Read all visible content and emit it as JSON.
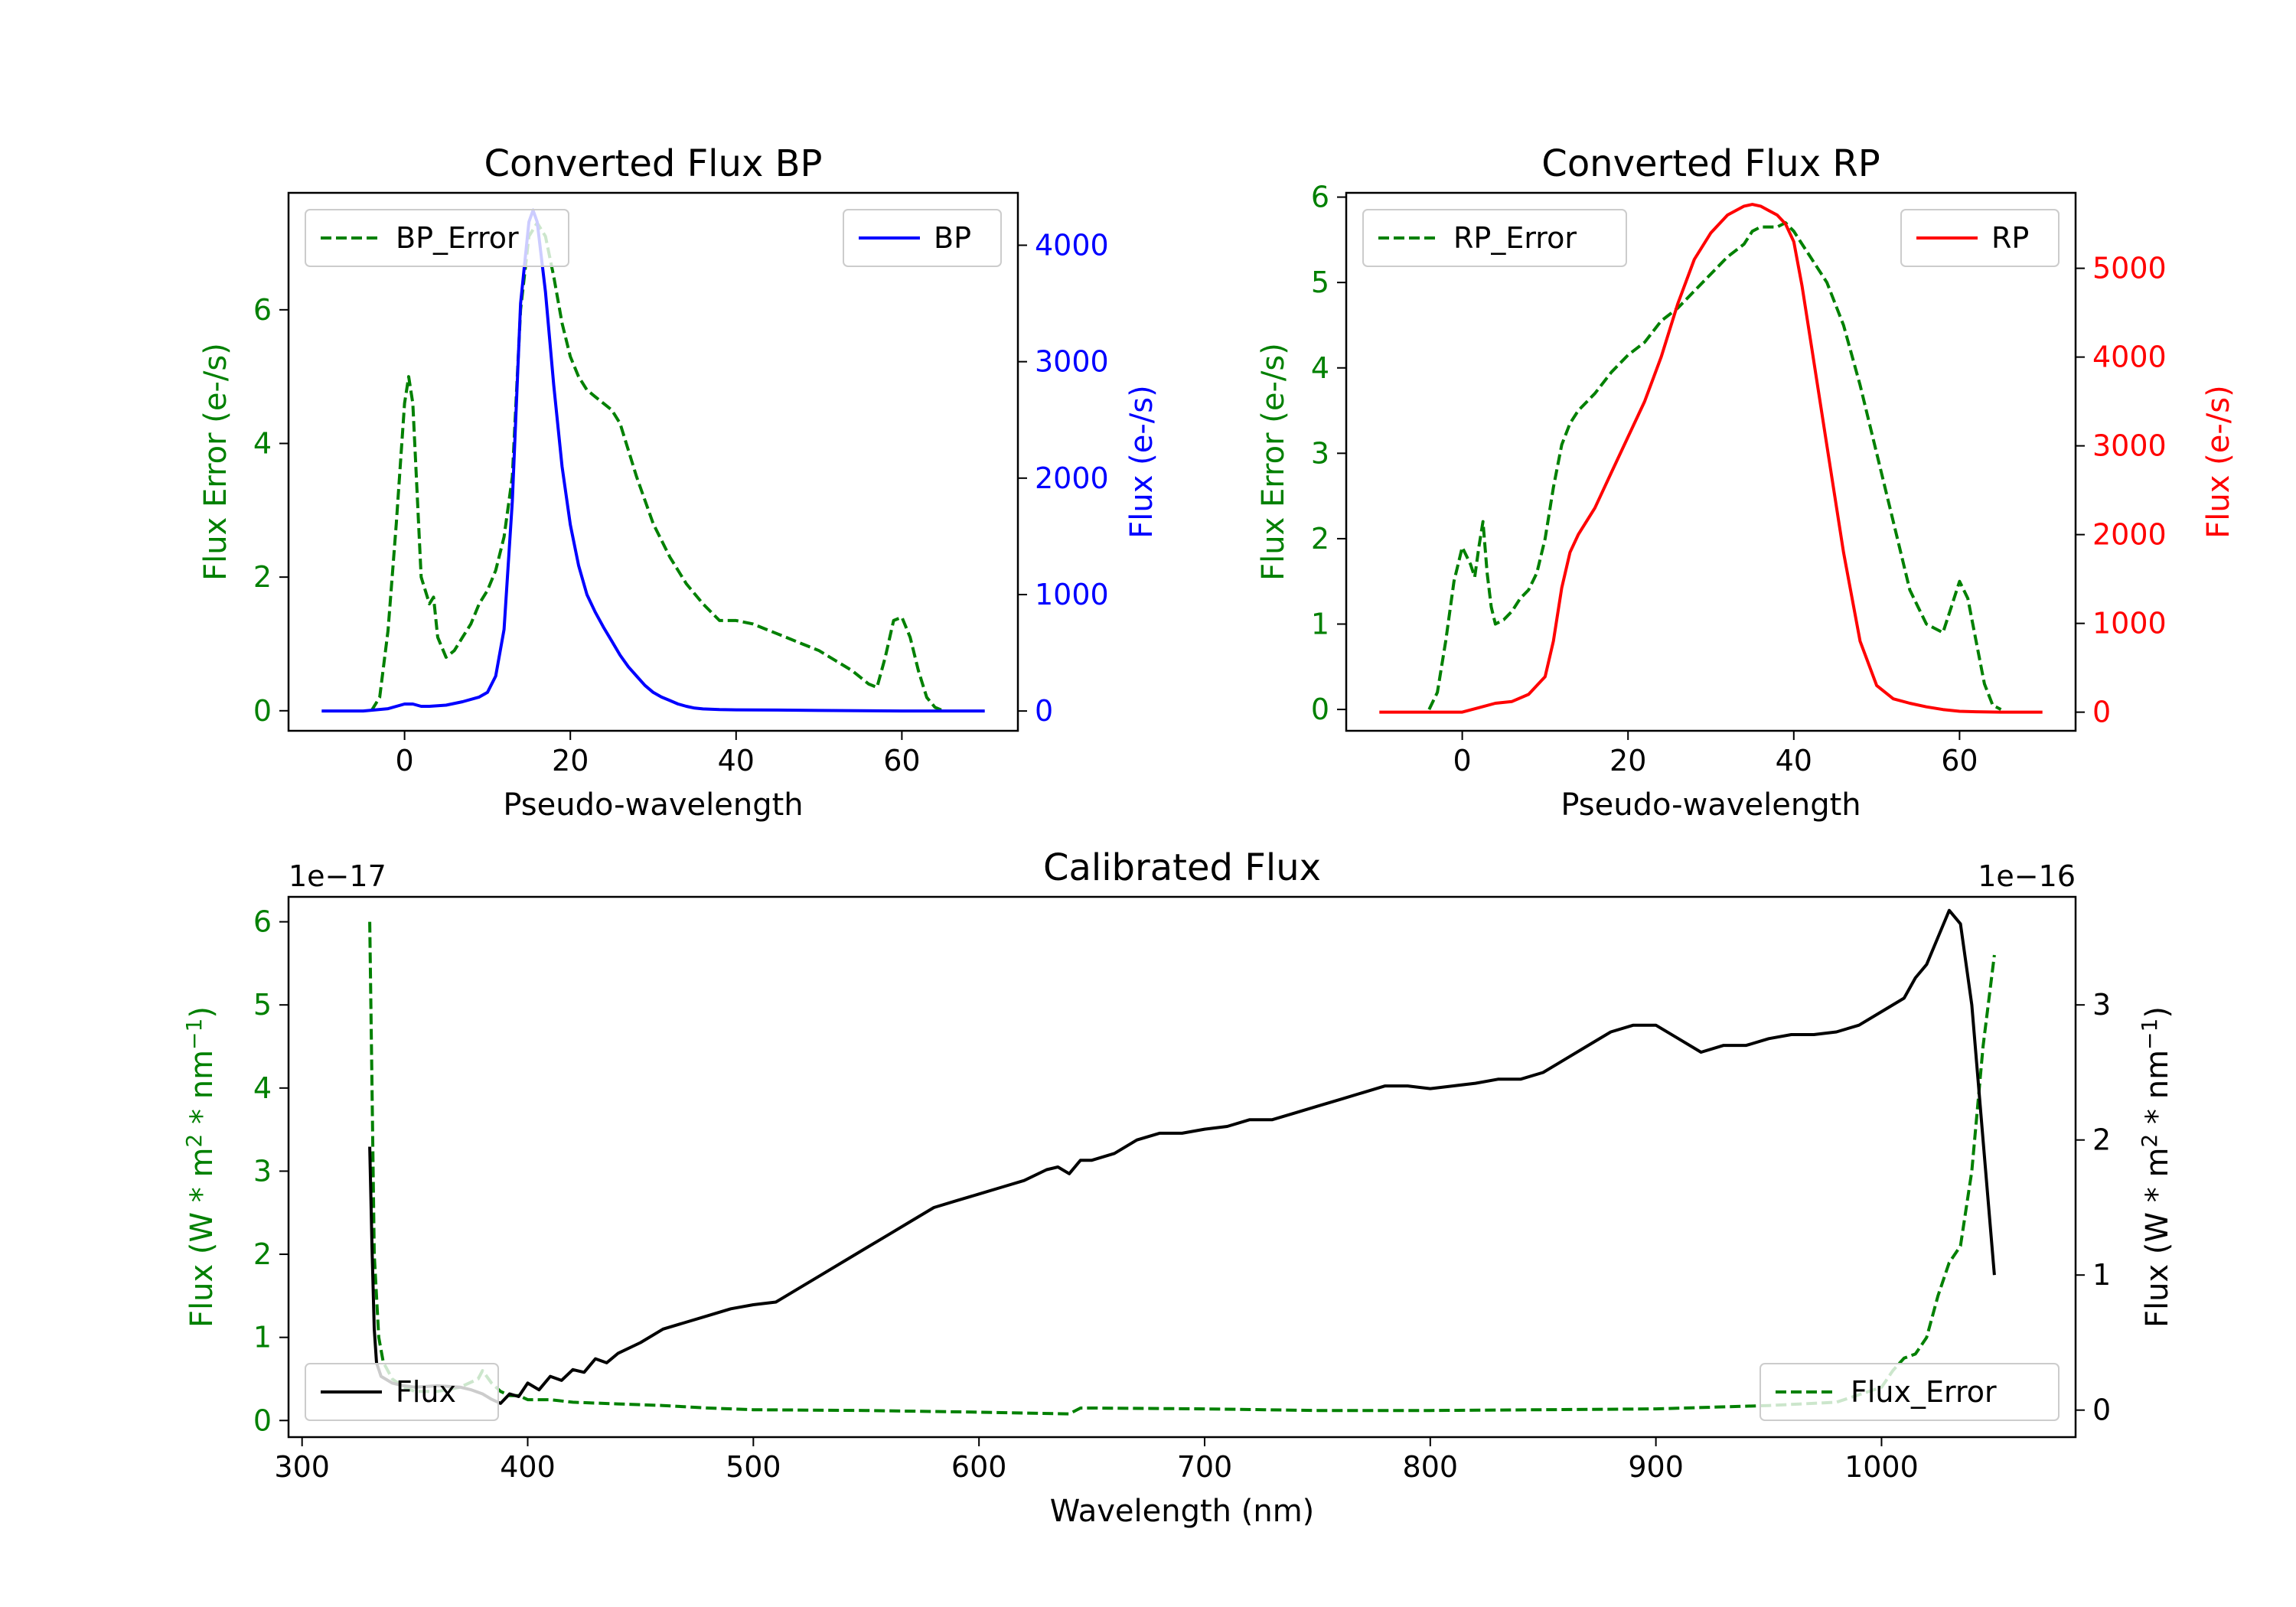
{
  "colors": {
    "error": "#008000",
    "bp": "#0000ff",
    "rp": "#ff0000",
    "flux": "#000000",
    "frame": "#000000"
  },
  "chart_data": [
    {
      "id": "bp",
      "type": "line",
      "title": "Converted Flux BP",
      "xlabel": "Pseudo-wavelength",
      "ylabel_left": "Flux Error (e-/s)",
      "ylabel_right": "Flux (e-/s)",
      "xlim": [
        -14,
        74
      ],
      "ylim_left": [
        -0.3,
        7.75
      ],
      "ylim_right": [
        -170,
        4450
      ],
      "xticks": [
        {
          "v": 0,
          "label": "0"
        },
        {
          "v": 20,
          "label": "20"
        },
        {
          "v": 40,
          "label": "40"
        },
        {
          "v": 60,
          "label": "60"
        }
      ],
      "yticks_left": [
        {
          "v": 0,
          "label": "0"
        },
        {
          "v": 2,
          "label": "2"
        },
        {
          "v": 4,
          "label": "4"
        },
        {
          "v": 6,
          "label": "6"
        }
      ],
      "yticks_right": [
        {
          "v": 0,
          "label": "0"
        },
        {
          "v": 1000,
          "label": "1000"
        },
        {
          "v": 2000,
          "label": "2000"
        },
        {
          "v": 3000,
          "label": "3000"
        },
        {
          "v": 4000,
          "label": "4000"
        }
      ],
      "legend_left": {
        "label": "BP_Error",
        "position": "upper-left"
      },
      "legend_right": {
        "label": "BP",
        "position": "upper-right"
      },
      "series": [
        {
          "name": "BP_Error",
          "axis": "left",
          "color_key": "error",
          "dashed": true,
          "x": [
            -4,
            -3,
            -2,
            -1,
            0,
            0.5,
            1,
            2,
            3,
            3.5,
            4,
            5,
            6,
            7,
            8,
            9,
            10,
            11,
            12,
            13,
            14,
            15,
            16,
            17,
            18,
            19,
            20,
            21,
            22,
            23,
            24,
            25,
            26,
            27,
            28,
            30,
            32,
            34,
            36,
            38,
            40,
            42,
            44,
            46,
            48,
            50,
            52,
            54,
            56,
            57,
            58,
            59,
            60,
            61,
            62,
            63,
            64,
            65
          ],
          "y": [
            0,
            0.2,
            1.2,
            2.8,
            4.6,
            5.0,
            4.6,
            2.0,
            1.6,
            1.7,
            1.1,
            0.8,
            0.9,
            1.1,
            1.3,
            1.6,
            1.8,
            2.1,
            2.6,
            3.5,
            6.0,
            7.1,
            7.3,
            7.1,
            6.5,
            5.8,
            5.3,
            5.0,
            4.8,
            4.7,
            4.6,
            4.5,
            4.3,
            3.9,
            3.5,
            2.8,
            2.3,
            1.9,
            1.6,
            1.35,
            1.35,
            1.3,
            1.2,
            1.1,
            1.0,
            0.9,
            0.75,
            0.6,
            0.4,
            0.35,
            0.8,
            1.35,
            1.4,
            1.1,
            0.6,
            0.2,
            0.05,
            0
          ]
        },
        {
          "name": "BP",
          "axis": "right",
          "color_key": "bp",
          "dashed": false,
          "x": [
            -10,
            -5,
            -2,
            0,
            1,
            2,
            3,
            5,
            7,
            9,
            10,
            11,
            12,
            13,
            14,
            15,
            15.5,
            16,
            17,
            18,
            19,
            20,
            21,
            22,
            23,
            24,
            25,
            26,
            27,
            28,
            29,
            30,
            31,
            32,
            33,
            34,
            35,
            36,
            38,
            40,
            45,
            50,
            55,
            60,
            65,
            70
          ],
          "y": [
            0,
            0,
            20,
            60,
            60,
            40,
            40,
            50,
            80,
            120,
            160,
            300,
            700,
            1800,
            3500,
            4200,
            4300,
            4200,
            3600,
            2800,
            2100,
            1600,
            1250,
            1000,
            850,
            720,
            600,
            480,
            380,
            300,
            220,
            160,
            120,
            90,
            60,
            40,
            25,
            18,
            12,
            10,
            8,
            5,
            3,
            0,
            0,
            0
          ]
        }
      ]
    },
    {
      "id": "rp",
      "type": "line",
      "title": "Converted Flux RP",
      "xlabel": "Pseudo-wavelength",
      "ylabel_left": "Flux Error (e-/s)",
      "ylabel_right": "Flux (e-/s)",
      "xlim": [
        -14,
        74
      ],
      "ylim_left": [
        -0.25,
        6.05
      ],
      "ylim_right": [
        -210,
        5850
      ],
      "xticks": [
        {
          "v": 0,
          "label": "0"
        },
        {
          "v": 20,
          "label": "20"
        },
        {
          "v": 40,
          "label": "40"
        },
        {
          "v": 60,
          "label": "60"
        }
      ],
      "yticks_left": [
        {
          "v": 0,
          "label": "0"
        },
        {
          "v": 1,
          "label": "1"
        },
        {
          "v": 2,
          "label": "2"
        },
        {
          "v": 3,
          "label": "3"
        },
        {
          "v": 4,
          "label": "4"
        },
        {
          "v": 5,
          "label": "5"
        },
        {
          "v": 6,
          "label": "6"
        }
      ],
      "yticks_right": [
        {
          "v": 0,
          "label": "0"
        },
        {
          "v": 1000,
          "label": "1000"
        },
        {
          "v": 2000,
          "label": "2000"
        },
        {
          "v": 3000,
          "label": "3000"
        },
        {
          "v": 4000,
          "label": "4000"
        },
        {
          "v": 5000,
          "label": "5000"
        }
      ],
      "legend_left": {
        "label": "RP_Error",
        "position": "upper-left"
      },
      "legend_right": {
        "label": "RP",
        "position": "upper-right"
      },
      "series": [
        {
          "name": "RP_Error",
          "axis": "left",
          "color_key": "error",
          "dashed": true,
          "x": [
            -4,
            -3,
            -2,
            -1,
            0,
            1,
            1.5,
            2,
            2.5,
            3,
            3.5,
            4,
            5,
            6,
            7,
            8,
            9,
            10,
            11,
            12,
            13,
            14,
            16,
            18,
            20,
            22,
            24,
            26,
            28,
            30,
            32,
            34,
            35,
            36,
            38,
            39,
            40,
            41,
            42,
            44,
            46,
            48,
            50,
            52,
            54,
            55,
            56,
            57,
            58,
            59,
            60,
            61,
            62,
            63,
            64,
            65
          ],
          "y": [
            0,
            0.2,
            0.8,
            1.5,
            1.9,
            1.7,
            1.55,
            1.9,
            2.2,
            1.6,
            1.2,
            1.0,
            1.05,
            1.15,
            1.3,
            1.4,
            1.6,
            2.0,
            2.6,
            3.1,
            3.35,
            3.5,
            3.7,
            3.95,
            4.15,
            4.3,
            4.55,
            4.7,
            4.9,
            5.1,
            5.3,
            5.45,
            5.6,
            5.65,
            5.65,
            5.7,
            5.6,
            5.45,
            5.3,
            5.0,
            4.5,
            3.8,
            3.0,
            2.2,
            1.4,
            1.2,
            1.0,
            0.95,
            0.9,
            1.2,
            1.5,
            1.3,
            0.8,
            0.3,
            0.05,
            0
          ]
        },
        {
          "name": "RP",
          "axis": "right",
          "color_key": "rp",
          "dashed": false,
          "x": [
            -10,
            -5,
            0,
            2,
            4,
            6,
            8,
            10,
            11,
            12,
            13,
            14,
            16,
            18,
            20,
            22,
            24,
            26,
            28,
            30,
            32,
            34,
            35,
            36,
            37,
            38,
            39,
            40,
            41,
            42,
            44,
            46,
            48,
            50,
            52,
            54,
            56,
            58,
            60,
            62,
            65,
            70
          ],
          "y": [
            0,
            0,
            0,
            50,
            100,
            120,
            200,
            400,
            800,
            1400,
            1800,
            2000,
            2300,
            2700,
            3100,
            3500,
            4000,
            4600,
            5100,
            5400,
            5600,
            5700,
            5720,
            5700,
            5650,
            5600,
            5500,
            5300,
            4800,
            4200,
            3000,
            1800,
            800,
            300,
            150,
            100,
            60,
            30,
            10,
            5,
            0,
            0
          ]
        }
      ]
    },
    {
      "id": "calibrated",
      "type": "line",
      "title": "Calibrated Flux",
      "xlabel": "Wavelength (nm)",
      "ylabel_left": [
        "Flux (W * m",
        "2",
        " * nm",
        "−1",
        ")"
      ],
      "ylabel_right": [
        "Flux (W * m",
        "2",
        " * nm",
        "−1",
        ")"
      ],
      "offset_left": "1e−17",
      "offset_right": "1e−16",
      "xlim": [
        294,
        1086
      ],
      "ylim_left": [
        -0.2,
        6.3
      ],
      "ylim_right": [
        -0.2,
        3.8
      ],
      "xticks": [
        {
          "v": 300,
          "label": "300"
        },
        {
          "v": 400,
          "label": "400"
        },
        {
          "v": 500,
          "label": "500"
        },
        {
          "v": 600,
          "label": "600"
        },
        {
          "v": 700,
          "label": "700"
        },
        {
          "v": 800,
          "label": "800"
        },
        {
          "v": 900,
          "label": "900"
        },
        {
          "v": 1000,
          "label": "1000"
        }
      ],
      "yticks_left": [
        {
          "v": 0,
          "label": "0"
        },
        {
          "v": 1,
          "label": "1"
        },
        {
          "v": 2,
          "label": "2"
        },
        {
          "v": 3,
          "label": "3"
        },
        {
          "v": 4,
          "label": "4"
        },
        {
          "v": 5,
          "label": "5"
        },
        {
          "v": 6,
          "label": "6"
        }
      ],
      "yticks_right": [
        {
          "v": 0,
          "label": "0"
        },
        {
          "v": 1,
          "label": "1"
        },
        {
          "v": 2,
          "label": "2"
        },
        {
          "v": 3,
          "label": "3"
        }
      ],
      "legend_left": {
        "label": "Flux",
        "position": "lower-left"
      },
      "legend_right": {
        "label": "Flux_Error",
        "position": "lower-right"
      },
      "series": [
        {
          "name": "Flux_Error",
          "axis": "left",
          "color_key": "error",
          "dashed": true,
          "x": [
            330,
            331,
            332,
            334,
            336,
            340,
            345,
            350,
            360,
            370,
            378,
            380,
            384,
            388,
            392,
            396,
            400,
            410,
            420,
            440,
            460,
            480,
            500,
            550,
            600,
            640,
            645,
            650,
            700,
            750,
            800,
            850,
            900,
            950,
            980,
            1000,
            1005,
            1010,
            1015,
            1020,
            1025,
            1030,
            1035,
            1040,
            1045,
            1050
          ],
          "y": [
            6.0,
            4.0,
            2.0,
            1.0,
            0.7,
            0.5,
            0.4,
            0.35,
            0.35,
            0.4,
            0.5,
            0.6,
            0.45,
            0.35,
            0.3,
            0.3,
            0.25,
            0.25,
            0.22,
            0.2,
            0.18,
            0.15,
            0.13,
            0.12,
            0.1,
            0.08,
            0.15,
            0.15,
            0.14,
            0.12,
            0.12,
            0.13,
            0.14,
            0.18,
            0.22,
            0.4,
            0.6,
            0.75,
            0.8,
            1.0,
            1.5,
            1.9,
            2.1,
            3.0,
            4.5,
            5.6
          ]
        },
        {
          "name": "Flux",
          "axis": "right",
          "color_key": "flux",
          "dashed": false,
          "x": [
            330,
            331,
            332,
            333,
            335,
            340,
            345,
            350,
            360,
            370,
            375,
            380,
            384,
            388,
            392,
            396,
            400,
            405,
            410,
            415,
            420,
            425,
            430,
            435,
            440,
            450,
            460,
            470,
            480,
            490,
            500,
            510,
            520,
            530,
            540,
            550,
            560,
            570,
            580,
            590,
            600,
            610,
            620,
            630,
            635,
            640,
            645,
            650,
            660,
            670,
            680,
            690,
            700,
            710,
            720,
            730,
            740,
            750,
            760,
            770,
            780,
            790,
            800,
            810,
            820,
            830,
            840,
            850,
            860,
            870,
            880,
            890,
            900,
            910,
            920,
            930,
            940,
            950,
            960,
            970,
            980,
            990,
            1000,
            1010,
            1015,
            1020,
            1025,
            1030,
            1035,
            1040,
            1045,
            1050
          ],
          "y": [
            1.95,
            1.2,
            0.6,
            0.35,
            0.25,
            0.2,
            0.18,
            0.17,
            0.18,
            0.17,
            0.15,
            0.12,
            0.08,
            0.05,
            0.12,
            0.1,
            0.2,
            0.15,
            0.25,
            0.22,
            0.3,
            0.28,
            0.38,
            0.35,
            0.42,
            0.5,
            0.6,
            0.65,
            0.7,
            0.75,
            0.78,
            0.8,
            0.9,
            1.0,
            1.1,
            1.2,
            1.3,
            1.4,
            1.5,
            1.55,
            1.6,
            1.65,
            1.7,
            1.78,
            1.8,
            1.75,
            1.85,
            1.85,
            1.9,
            2.0,
            2.05,
            2.05,
            2.08,
            2.1,
            2.15,
            2.15,
            2.2,
            2.25,
            2.3,
            2.35,
            2.4,
            2.4,
            2.38,
            2.4,
            2.42,
            2.45,
            2.45,
            2.5,
            2.6,
            2.7,
            2.8,
            2.85,
            2.85,
            2.75,
            2.65,
            2.7,
            2.7,
            2.75,
            2.78,
            2.78,
            2.8,
            2.85,
            2.95,
            3.05,
            3.2,
            3.3,
            3.5,
            3.7,
            3.6,
            3.0,
            2.0,
            1.0
          ]
        }
      ]
    }
  ]
}
